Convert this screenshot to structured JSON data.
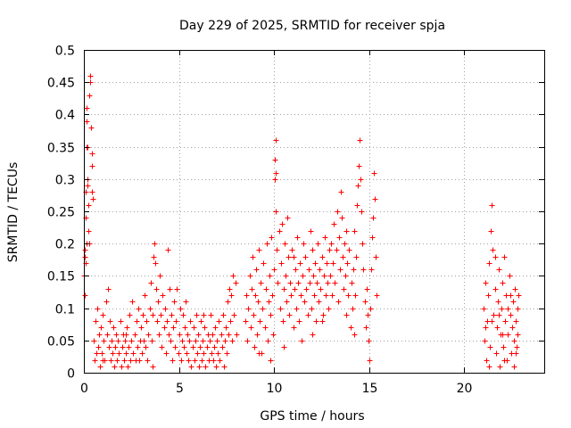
{
  "chart_data": {
    "type": "scatter",
    "title": "Day 229 of 2025, SRMTID for receiver spja",
    "xlabel": "GPS time / hours",
    "ylabel": "SRMTID / TECUs",
    "xlim": [
      0,
      24.2
    ],
    "ylim": [
      0,
      0.5
    ],
    "grid": true,
    "marker": "+",
    "color": "#ff0000",
    "xticks": [
      {
        "value": 0,
        "label": "0"
      },
      {
        "value": 5,
        "label": "5"
      },
      {
        "value": 10,
        "label": "10"
      },
      {
        "value": 15,
        "label": "15"
      },
      {
        "value": 20,
        "label": "20"
      }
    ],
    "yticks": [
      {
        "value": 0,
        "label": "0"
      },
      {
        "value": 0.05,
        "label": "0.05"
      },
      {
        "value": 0.1,
        "label": "0.1"
      },
      {
        "value": 0.15,
        "label": "0.15"
      },
      {
        "value": 0.2,
        "label": "0.2"
      },
      {
        "value": 0.25,
        "label": "0.25"
      },
      {
        "value": 0.3,
        "label": "0.3"
      },
      {
        "value": 0.35,
        "label": "0.35"
      },
      {
        "value": 0.4,
        "label": "0.4"
      },
      {
        "value": 0.45,
        "label": "0.45"
      },
      {
        "value": 0.5,
        "label": "0.5"
      }
    ],
    "points": [
      [
        0.02,
        0.15
      ],
      [
        0.05,
        0.18
      ],
      [
        0.08,
        0.24
      ],
      [
        0.1,
        0.28
      ],
      [
        0.12,
        0.35
      ],
      [
        0.14,
        0.39
      ],
      [
        0.16,
        0.41
      ],
      [
        0.18,
        0.35
      ],
      [
        0.2,
        0.3
      ],
      [
        0.22,
        0.26
      ],
      [
        0.25,
        0.22
      ],
      [
        0.28,
        0.2
      ],
      [
        0.3,
        0.43
      ],
      [
        0.32,
        0.46
      ],
      [
        0.35,
        0.45
      ],
      [
        0.37,
        0.38
      ],
      [
        0.4,
        0.34
      ],
      [
        0.42,
        0.28
      ],
      [
        0.44,
        0.32
      ],
      [
        0.46,
        0.27
      ],
      [
        0.05,
        0.12
      ],
      [
        0.1,
        0.17
      ],
      [
        0.15,
        0.2
      ],
      [
        0.2,
        0.29
      ],
      [
        0.07,
        0.19
      ],
      [
        0.5,
        0.05
      ],
      [
        0.55,
        0.02
      ],
      [
        0.6,
        0.08
      ],
      [
        0.65,
        0.03
      ],
      [
        0.7,
        0.1
      ],
      [
        0.75,
        0.04
      ],
      [
        0.8,
        0.06
      ],
      [
        0.85,
        0.01
      ],
      [
        0.9,
        0.07
      ],
      [
        0.95,
        0.03
      ],
      [
        1.0,
        0.09
      ],
      [
        1.05,
        0.05
      ],
      [
        1.1,
        0.02
      ],
      [
        1.15,
        0.11
      ],
      [
        1.2,
        0.06
      ],
      [
        1.25,
        0.13
      ],
      [
        1.3,
        0.04
      ],
      [
        1.35,
        0.08
      ],
      [
        1.4,
        0.02
      ],
      [
        1.45,
        0.05
      ],
      [
        1.5,
        0.03
      ],
      [
        1.55,
        0.07
      ],
      [
        1.6,
        0.01
      ],
      [
        1.65,
        0.04
      ],
      [
        1.7,
        0.06
      ],
      [
        1.75,
        0.02
      ],
      [
        1.8,
        0.05
      ],
      [
        1.85,
        0.03
      ],
      [
        1.9,
        0.08
      ],
      [
        1.95,
        0.01
      ],
      [
        2.0,
        0.04
      ],
      [
        2.05,
        0.06
      ],
      [
        2.1,
        0.02
      ],
      [
        2.15,
        0.05
      ],
      [
        2.2,
        0.03
      ],
      [
        2.25,
        0.07
      ],
      [
        2.3,
        0.01
      ],
      [
        2.35,
        0.04
      ],
      [
        2.4,
        0.09
      ],
      [
        2.45,
        0.02
      ],
      [
        2.5,
        0.05
      ],
      [
        2.55,
        0.11
      ],
      [
        2.6,
        0.03
      ],
      [
        2.65,
        0.06
      ],
      [
        2.7,
        0.02
      ],
      [
        2.75,
        0.08
      ],
      [
        2.8,
        0.04
      ],
      [
        2.85,
        0.1
      ],
      [
        2.9,
        0.02
      ],
      [
        2.95,
        0.05
      ],
      [
        3.0,
        0.07
      ],
      [
        3.05,
        0.03
      ],
      [
        3.1,
        0.09
      ],
      [
        3.15,
        0.05
      ],
      [
        3.2,
        0.12
      ],
      [
        3.25,
        0.04
      ],
      [
        3.3,
        0.08
      ],
      [
        3.35,
        0.02
      ],
      [
        3.4,
        0.06
      ],
      [
        3.45,
        0.1
      ],
      [
        3.5,
        0.14
      ],
      [
        3.55,
        0.05
      ],
      [
        3.6,
        0.09
      ],
      [
        3.65,
        0.18
      ],
      [
        3.7,
        0.2
      ],
      [
        3.75,
        0.17
      ],
      [
        3.8,
        0.13
      ],
      [
        3.85,
        0.08
      ],
      [
        3.9,
        0.11
      ],
      [
        3.95,
        0.06
      ],
      [
        4.0,
        0.15
      ],
      [
        4.05,
        0.09
      ],
      [
        4.1,
        0.04
      ],
      [
        4.15,
        0.12
      ],
      [
        4.2,
        0.07
      ],
      [
        4.25,
        0.1
      ],
      [
        4.3,
        0.03
      ],
      [
        4.35,
        0.08
      ],
      [
        4.4,
        0.19
      ],
      [
        4.45,
        0.06
      ],
      [
        4.5,
        0.13
      ],
      [
        4.55,
        0.05
      ],
      [
        4.6,
        0.09
      ],
      [
        4.65,
        0.02
      ],
      [
        4.7,
        0.07
      ],
      [
        4.75,
        0.11
      ],
      [
        4.8,
        0.04
      ],
      [
        4.85,
        0.08
      ],
      [
        4.9,
        0.13
      ],
      [
        4.95,
        0.03
      ],
      [
        5.0,
        0.06
      ],
      [
        5.05,
        0.1
      ],
      [
        5.1,
        0.02
      ],
      [
        5.15,
        0.05
      ],
      [
        5.2,
        0.09
      ],
      [
        5.25,
        0.04
      ],
      [
        5.3,
        0.07
      ],
      [
        5.35,
        0.11
      ],
      [
        5.4,
        0.03
      ],
      [
        5.45,
        0.06
      ],
      [
        5.5,
        0.02
      ],
      [
        5.55,
        0.05
      ],
      [
        5.6,
        0.08
      ],
      [
        5.65,
        0.01
      ],
      [
        5.7,
        0.04
      ],
      [
        5.75,
        0.07
      ],
      [
        5.8,
        0.02
      ],
      [
        5.85,
        0.05
      ],
      [
        5.9,
        0.09
      ],
      [
        5.95,
        0.03
      ],
      [
        6.0,
        0.06
      ],
      [
        6.05,
        0.01
      ],
      [
        6.1,
        0.04
      ],
      [
        6.15,
        0.08
      ],
      [
        6.2,
        0.02
      ],
      [
        6.25,
        0.05
      ],
      [
        6.3,
        0.03
      ],
      [
        6.35,
        0.07
      ],
      [
        6.4,
        0.01
      ],
      [
        6.45,
        0.04
      ],
      [
        6.5,
        0.06
      ],
      [
        6.55,
        0.02
      ],
      [
        6.6,
        0.05
      ],
      [
        6.65,
        0.09
      ],
      [
        6.7,
        0.03
      ],
      [
        6.75,
        0.06
      ],
      [
        6.8,
        0.02
      ],
      [
        6.85,
        0.04
      ],
      [
        6.9,
        0.07
      ],
      [
        6.95,
        0.01
      ],
      [
        7.0,
        0.05
      ],
      [
        7.05,
        0.03
      ],
      [
        7.1,
        0.08
      ],
      [
        7.15,
        0.02
      ],
      [
        7.2,
        0.06
      ],
      [
        7.25,
        0.04
      ],
      [
        7.3,
        0.09
      ],
      [
        7.35,
        0.01
      ],
      [
        7.4,
        0.05
      ],
      [
        7.45,
        0.07
      ],
      [
        7.5,
        0.03
      ],
      [
        7.55,
        0.11
      ],
      [
        7.6,
        0.06
      ],
      [
        7.65,
        0.13
      ],
      [
        7.7,
        0.08
      ],
      [
        7.75,
        0.12
      ],
      [
        7.8,
        0.05
      ],
      [
        7.85,
        0.15
      ],
      [
        7.9,
        0.09
      ],
      [
        7.95,
        0.14
      ],
      [
        8.0,
        0.06
      ],
      [
        1.0,
        0.02
      ],
      [
        2.2,
        0.06
      ],
      [
        3.6,
        0.01
      ],
      [
        6.3,
        0.09
      ],
      [
        8.5,
        0.08
      ],
      [
        8.55,
        0.12
      ],
      [
        8.6,
        0.05
      ],
      [
        8.65,
        0.1
      ],
      [
        8.7,
        0.15
      ],
      [
        8.75,
        0.07
      ],
      [
        8.8,
        0.13
      ],
      [
        8.85,
        0.18
      ],
      [
        8.9,
        0.09
      ],
      [
        8.95,
        0.04
      ],
      [
        9.0,
        0.12
      ],
      [
        9.05,
        0.16
      ],
      [
        9.1,
        0.06
      ],
      [
        9.15,
        0.11
      ],
      [
        9.2,
        0.19
      ],
      [
        9.25,
        0.08
      ],
      [
        9.3,
        0.14
      ],
      [
        9.35,
        0.03
      ],
      [
        9.4,
        0.1
      ],
      [
        9.45,
        0.17
      ],
      [
        9.5,
        0.07
      ],
      [
        9.55,
        0.13
      ],
      [
        9.6,
        0.2
      ],
      [
        9.65,
        0.05
      ],
      [
        9.7,
        0.11
      ],
      [
        9.75,
        0.15
      ],
      [
        9.8,
        0.09
      ],
      [
        9.85,
        0.21
      ],
      [
        9.9,
        0.12
      ],
      [
        9.95,
        0.06
      ],
      [
        10.0,
        0.16
      ],
      [
        10.02,
        0.3
      ],
      [
        10.04,
        0.33
      ],
      [
        10.06,
        0.36
      ],
      [
        10.08,
        0.31
      ],
      [
        10.1,
        0.25
      ],
      [
        10.15,
        0.19
      ],
      [
        10.2,
        0.14
      ],
      [
        10.25,
        0.22
      ],
      [
        10.3,
        0.1
      ],
      [
        10.35,
        0.17
      ],
      [
        10.4,
        0.23
      ],
      [
        10.45,
        0.08
      ],
      [
        10.5,
        0.13
      ],
      [
        10.55,
        0.2
      ],
      [
        10.6,
        0.15
      ],
      [
        10.65,
        0.11
      ],
      [
        10.7,
        0.24
      ],
      [
        10.75,
        0.18
      ],
      [
        10.8,
        0.09
      ],
      [
        10.85,
        0.14
      ],
      [
        10.9,
        0.12
      ],
      [
        10.95,
        0.19
      ],
      [
        11.0,
        0.07
      ],
      [
        11.05,
        0.13
      ],
      [
        11.1,
        0.16
      ],
      [
        11.15,
        0.1
      ],
      [
        11.2,
        0.21
      ],
      [
        11.25,
        0.14
      ],
      [
        11.3,
        0.08
      ],
      [
        11.35,
        0.17
      ],
      [
        11.4,
        0.12
      ],
      [
        11.45,
        0.05
      ],
      [
        11.5,
        0.15
      ],
      [
        11.55,
        0.2
      ],
      [
        11.6,
        0.11
      ],
      [
        11.65,
        0.18
      ],
      [
        11.7,
        0.13
      ],
      [
        11.75,
        0.09
      ],
      [
        11.8,
        0.16
      ],
      [
        11.85,
        0.14
      ],
      [
        11.9,
        0.22
      ],
      [
        11.95,
        0.1
      ],
      [
        12.0,
        0.19
      ],
      [
        12.05,
        0.15
      ],
      [
        12.1,
        0.12
      ],
      [
        12.15,
        0.17
      ],
      [
        12.2,
        0.08
      ],
      [
        12.25,
        0.14
      ],
      [
        12.3,
        0.2
      ],
      [
        12.35,
        0.11
      ],
      [
        12.4,
        0.16
      ],
      [
        12.45,
        0.13
      ],
      [
        12.5,
        0.18
      ],
      [
        12.55,
        0.09
      ],
      [
        12.6,
        0.15
      ],
      [
        12.65,
        0.21
      ],
      [
        12.7,
        0.12
      ],
      [
        12.75,
        0.17
      ],
      [
        12.8,
        0.14
      ],
      [
        12.85,
        0.1
      ],
      [
        12.9,
        0.19
      ],
      [
        12.95,
        0.15
      ],
      [
        13.0,
        0.2
      ],
      [
        13.05,
        0.12
      ],
      [
        13.1,
        0.17
      ],
      [
        13.15,
        0.23
      ],
      [
        13.2,
        0.14
      ],
      [
        13.25,
        0.19
      ],
      [
        13.3,
        0.25
      ],
      [
        13.35,
        0.11
      ],
      [
        13.4,
        0.21
      ],
      [
        13.45,
        0.16
      ],
      [
        13.5,
        0.28
      ],
      [
        13.55,
        0.24
      ],
      [
        13.6,
        0.18
      ],
      [
        13.65,
        0.13
      ],
      [
        13.7,
        0.2
      ],
      [
        13.75,
        0.15
      ],
      [
        13.8,
        0.09
      ],
      [
        13.85,
        0.17
      ],
      [
        13.9,
        0.12
      ],
      [
        13.95,
        0.19
      ],
      [
        14.0,
        0.07
      ],
      [
        14.05,
        0.14
      ],
      [
        14.1,
        0.1
      ],
      [
        14.15,
        0.16
      ],
      [
        14.2,
        0.22
      ],
      [
        14.25,
        0.12
      ],
      [
        14.3,
        0.18
      ],
      [
        14.35,
        0.26
      ],
      [
        14.4,
        0.29
      ],
      [
        14.45,
        0.32
      ],
      [
        14.5,
        0.36
      ],
      [
        14.55,
        0.3
      ],
      [
        14.6,
        0.25
      ],
      [
        14.65,
        0.2
      ],
      [
        14.7,
        0.16
      ],
      [
        14.75,
        0.11
      ],
      [
        14.8,
        0.07
      ],
      [
        14.85,
        0.13
      ],
      [
        14.9,
        0.09
      ],
      [
        14.95,
        0.05
      ],
      [
        15.0,
        0.02
      ],
      [
        15.05,
        0.1
      ],
      [
        15.1,
        0.16
      ],
      [
        15.15,
        0.21
      ],
      [
        15.2,
        0.24
      ],
      [
        15.25,
        0.31
      ],
      [
        15.3,
        0.27
      ],
      [
        15.35,
        0.18
      ],
      [
        15.4,
        0.12
      ],
      [
        9.2,
        0.03
      ],
      [
        9.8,
        0.02
      ],
      [
        11.0,
        0.18
      ],
      [
        12.5,
        0.08
      ],
      [
        13.8,
        0.22
      ],
      [
        14.2,
        0.06
      ],
      [
        10.5,
        0.04
      ],
      [
        12.0,
        0.06
      ],
      [
        21.0,
        0.1
      ],
      [
        21.05,
        0.05
      ],
      [
        21.1,
        0.14
      ],
      [
        21.15,
        0.02
      ],
      [
        21.2,
        0.08
      ],
      [
        21.25,
        0.12
      ],
      [
        21.3,
        0.17
      ],
      [
        21.35,
        0.04
      ],
      [
        21.4,
        0.22
      ],
      [
        21.45,
        0.26
      ],
      [
        21.5,
        0.19
      ],
      [
        21.55,
        0.09
      ],
      [
        21.6,
        0.13
      ],
      [
        21.65,
        0.03
      ],
      [
        21.7,
        0.07
      ],
      [
        21.75,
        0.11
      ],
      [
        21.8,
        0.16
      ],
      [
        21.85,
        0.01
      ],
      [
        21.9,
        0.06
      ],
      [
        21.95,
        0.1
      ],
      [
        22.0,
        0.14
      ],
      [
        22.05,
        0.04
      ],
      [
        22.1,
        0.18
      ],
      [
        22.15,
        0.08
      ],
      [
        22.2,
        0.12
      ],
      [
        22.25,
        0.02
      ],
      [
        22.3,
        0.06
      ],
      [
        22.35,
        0.15
      ],
      [
        22.4,
        0.09
      ],
      [
        22.45,
        0.03
      ],
      [
        22.5,
        0.07
      ],
      [
        22.55,
        0.11
      ],
      [
        22.6,
        0.05
      ],
      [
        22.65,
        0.13
      ],
      [
        22.7,
        0.08
      ],
      [
        22.75,
        0.04
      ],
      [
        22.8,
        0.1
      ],
      [
        22.85,
        0.12
      ],
      [
        21.3,
        0.01
      ],
      [
        21.8,
        0.09
      ],
      [
        22.1,
        0.02
      ],
      [
        22.4,
        0.12
      ],
      [
        22.6,
        0.01
      ],
      [
        21.1,
        0.07
      ],
      [
        21.6,
        0.18
      ],
      [
        22.0,
        0.06
      ],
      [
        22.3,
        0.1
      ],
      [
        22.7,
        0.03
      ],
      [
        21.45,
        0.08
      ],
      [
        22.8,
        0.06
      ]
    ]
  }
}
